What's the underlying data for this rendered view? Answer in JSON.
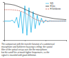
{
  "chart_data": {
    "type": "line",
    "x": [
      0,
      1,
      2,
      3,
      4,
      5,
      6,
      7,
      8,
      9,
      10,
      11,
      12,
      13,
      14,
      15,
      16,
      17,
      18,
      19,
      20,
      21,
      22,
      23,
      24,
      25,
      26,
      27,
      28,
      29,
      30
    ],
    "series": [
      {
        "name": "S(f)",
        "color": "#29b6e8",
        "line_style": "solid",
        "values": [
          0,
          0,
          0,
          0,
          0.05,
          -0.1,
          0.2,
          -0.35,
          0.5,
          -0.65,
          0.8,
          -0.75,
          0.7,
          -0.6,
          0.5,
          -0.4,
          0.3,
          -0.22,
          0.15,
          -0.1,
          0.06,
          -0.03,
          0.01,
          0,
          0,
          0,
          0,
          0,
          0,
          0,
          0
        ]
      },
      {
        "name": "H mic",
        "color": "#111111",
        "line_style": "solid",
        "values": [
          0.9,
          0.9,
          0.89,
          0.88,
          0.86,
          0.84,
          0.8,
          0.76,
          0.72,
          0.67,
          0.62,
          0.57,
          0.52,
          0.47,
          0.42,
          0.38,
          0.34,
          0.3,
          0.27,
          0.24,
          0.21,
          0.19,
          0.17,
          0.15,
          0.13,
          0.12,
          0.11,
          0.1,
          0.09,
          0.08,
          0.07
        ]
      },
      {
        "name": "H Schlieren",
        "color": "#c0392b",
        "line_style": "dashed",
        "values": [
          0.6,
          0.6,
          0.6,
          0.6,
          0.59,
          0.58,
          0.57,
          0.55,
          0.52,
          0.48,
          0.43,
          0.37,
          0.3,
          0.23,
          0.16,
          0.1,
          0.05,
          0.02,
          0,
          -0.01,
          -0.01,
          0,
          0,
          0,
          0,
          0,
          0,
          0,
          0,
          0,
          0
        ]
      }
    ],
    "xlim": [
      0,
      30
    ],
    "xticks": [
      0,
      10,
      20,
      30
    ],
    "ylim": [
      -1,
      1
    ],
    "yticks": [
      -1,
      0,
      1
    ],
    "tick_labels": false,
    "legend": "upper right",
    "annotations": [
      "The comparison with the transfer function of a commercial",
      "microphone and Schlieren focusing is telling: the spatial",
      "filter of the optical set-up acts like the microphone,",
      "but the cutoff lies at much higher frequencies, so the",
      "signal is recorded with good definition."
    ]
  }
}
